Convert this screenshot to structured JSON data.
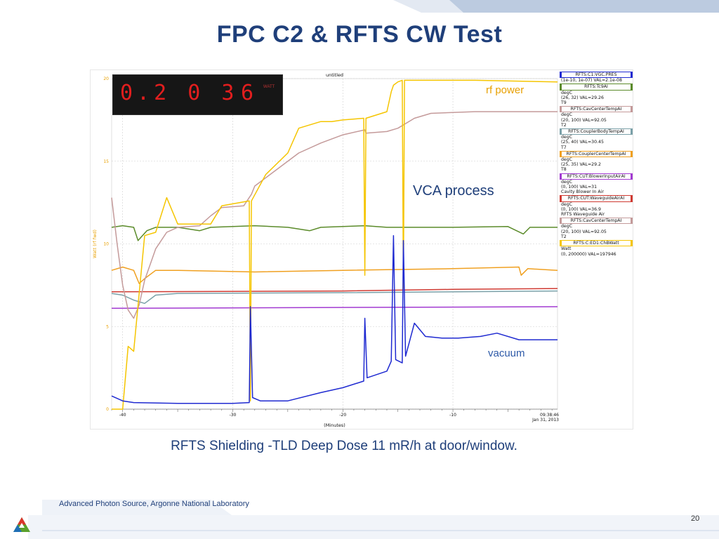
{
  "slide": {
    "title": "FPC C2 & RFTS CW Test",
    "caption": "RFTS Shielding -TLD Deep Dose 11 mR/h at door/window.",
    "footer": "Advanced Photon Source, Argonne National Laboratory",
    "page_number": "20",
    "colors": {
      "title": "#1f3f7a",
      "band": "#c9d4e6"
    }
  },
  "led_display": {
    "value": "0.2 0 3",
    "channel": "6",
    "unit": "WATT"
  },
  "chart_data": {
    "type": "line",
    "title": "untitled",
    "xlabel": "(Minutes)",
    "ylabel": "Watt (rf fwd)",
    "xlim": [
      -41,
      -0.5
    ],
    "ylim": [
      0,
      20
    ],
    "x_ticks": [
      "-40",
      "-30",
      "-20",
      "-10"
    ],
    "y_ticks": [
      "0",
      "5",
      "10",
      "15",
      "20"
    ],
    "timestamp": "09:38:46",
    "date": "Jan 31, 2013",
    "grid": true,
    "legend_position": "right",
    "annotations": {
      "rf_power": "rf power",
      "vca": "VCA process",
      "vacuum": "vacuum"
    },
    "series": [
      {
        "name": "RFTS:CUT:BlowerInputAirAI",
        "color": "#a23ad1",
        "points": [
          [
            -41,
            6.1
          ],
          [
            -0.5,
            6.2
          ]
        ]
      },
      {
        "name": "RFTS:CUT:WaveguideAirAI",
        "color": "#d03a32",
        "points": [
          [
            -41,
            7.1
          ],
          [
            -20,
            7.15
          ],
          [
            -10,
            7.25
          ],
          [
            -0.5,
            7.3
          ]
        ]
      },
      {
        "name": "RFTS:CouplerBodyTempAI",
        "color": "#7aa0a8",
        "points": [
          [
            -41,
            7.0
          ],
          [
            -40,
            6.9
          ],
          [
            -39,
            6.6
          ],
          [
            -38,
            6.4
          ],
          [
            -37,
            6.9
          ],
          [
            -35,
            7.0
          ],
          [
            -20,
            7.05
          ],
          [
            -0.5,
            7.15
          ]
        ]
      },
      {
        "name": "RFTS:CouplerCenterTempAI",
        "color": "#f0a020",
        "points": [
          [
            -41,
            8.4
          ],
          [
            -40,
            8.6
          ],
          [
            -39,
            8.4
          ],
          [
            -38.5,
            7.6
          ],
          [
            -38,
            7.9
          ],
          [
            -37,
            8.4
          ],
          [
            -35,
            8.4
          ],
          [
            -28,
            8.3
          ],
          [
            -20,
            8.4
          ],
          [
            -10,
            8.5
          ],
          [
            -4,
            8.6
          ],
          [
            -3.8,
            8.1
          ],
          [
            -3.2,
            8.5
          ],
          [
            -0.5,
            8.4
          ]
        ]
      },
      {
        "name": "RFTS:Tc9AI",
        "color": "#5b8b2a",
        "points": [
          [
            -41,
            11.0
          ],
          [
            -40,
            11.1
          ],
          [
            -39,
            11.0
          ],
          [
            -38.6,
            10.2
          ],
          [
            -37.8,
            10.8
          ],
          [
            -37,
            11.0
          ],
          [
            -35,
            11.0
          ],
          [
            -33,
            10.8
          ],
          [
            -32,
            11.0
          ],
          [
            -28,
            11.1
          ],
          [
            -25,
            11.0
          ],
          [
            -23,
            10.8
          ],
          [
            -22,
            11.0
          ],
          [
            -18,
            11.1
          ],
          [
            -16,
            11.0
          ],
          [
            -10,
            11.0
          ],
          [
            -5,
            11.05
          ],
          [
            -3.6,
            10.6
          ],
          [
            -3.0,
            11.0
          ],
          [
            -0.5,
            11.0
          ]
        ]
      },
      {
        "name": "RFTS:CavCenterTempAI",
        "color": "#c49a9a",
        "points": [
          [
            -41,
            12.8
          ],
          [
            -40.5,
            10.0
          ],
          [
            -40,
            7.5
          ],
          [
            -39.5,
            6.0
          ],
          [
            -39,
            5.5
          ],
          [
            -38.5,
            6.3
          ],
          [
            -38,
            7.8
          ],
          [
            -37,
            9.7
          ],
          [
            -36,
            10.7
          ],
          [
            -35,
            11.0
          ],
          [
            -33,
            11.1
          ],
          [
            -32,
            11.7
          ],
          [
            -31,
            12.2
          ],
          [
            -29,
            12.3
          ],
          [
            -28.3,
            13.0
          ],
          [
            -28,
            13.5
          ],
          [
            -26,
            14.5
          ],
          [
            -24,
            15.5
          ],
          [
            -22,
            16.1
          ],
          [
            -20,
            16.6
          ],
          [
            -18,
            16.9
          ],
          [
            -17.9,
            16.7
          ],
          [
            -16,
            16.8
          ],
          [
            -15,
            17.0
          ],
          [
            -13.5,
            17.6
          ],
          [
            -12,
            17.9
          ],
          [
            -8,
            18.0
          ],
          [
            -0.5,
            18.0
          ]
        ]
      },
      {
        "name": "RFTS:C:ED1:ChBWatt",
        "color": "#f5c500",
        "points": [
          [
            -41,
            0
          ],
          [
            -40,
            0
          ],
          [
            -39.5,
            3.8
          ],
          [
            -39,
            3.5
          ],
          [
            -38,
            10.5
          ],
          [
            -37,
            10.7
          ],
          [
            -36,
            12.8
          ],
          [
            -35,
            11.2
          ],
          [
            -32,
            11.2
          ],
          [
            -31,
            12.3
          ],
          [
            -28.5,
            12.6
          ],
          [
            -28.4,
            0.5
          ],
          [
            -28.3,
            12.6
          ],
          [
            -27,
            14.2
          ],
          [
            -25,
            15.5
          ],
          [
            -24,
            17.0
          ],
          [
            -22,
            17.4
          ],
          [
            -21,
            17.4
          ],
          [
            -20,
            17.5
          ],
          [
            -18.1,
            17.6
          ],
          [
            -18,
            8.1
          ],
          [
            -17.9,
            17.6
          ],
          [
            -16,
            18.0
          ],
          [
            -15.6,
            19.2
          ],
          [
            -15.4,
            19.6
          ],
          [
            -15,
            19.8
          ],
          [
            -14.6,
            19.9
          ],
          [
            -14.5,
            7.3
          ],
          [
            -14.4,
            19.9
          ],
          [
            -12,
            19.9
          ],
          [
            -8,
            19.9
          ],
          [
            -0.5,
            19.8
          ]
        ]
      },
      {
        "name": "RFTS:C1:VGC.PRES",
        "color": "#1f2ad1",
        "points": [
          [
            -41,
            0.8
          ],
          [
            -40,
            0.5
          ],
          [
            -39,
            0.4
          ],
          [
            -35,
            0.35
          ],
          [
            -30,
            0.35
          ],
          [
            -28.5,
            0.4
          ],
          [
            -28.4,
            6.2
          ],
          [
            -28.2,
            0.7
          ],
          [
            -27.5,
            0.5
          ],
          [
            -25,
            0.5
          ],
          [
            -22,
            1.0
          ],
          [
            -20,
            1.3
          ],
          [
            -18.1,
            1.7
          ],
          [
            -18.0,
            5.5
          ],
          [
            -17.8,
            1.9
          ],
          [
            -16,
            2.3
          ],
          [
            -15.6,
            2.9
          ],
          [
            -15.4,
            10.5
          ],
          [
            -15.2,
            3.0
          ],
          [
            -14.6,
            2.8
          ],
          [
            -14.5,
            10.2
          ],
          [
            -14.3,
            3.2
          ],
          [
            -13.5,
            5.2
          ],
          [
            -12.5,
            4.4
          ],
          [
            -11,
            4.3
          ],
          [
            -9.5,
            4.3
          ],
          [
            -7.5,
            4.4
          ],
          [
            -6,
            4.6
          ],
          [
            -4,
            4.2
          ],
          [
            -0.5,
            4.2
          ]
        ]
      }
    ]
  },
  "legend": [
    {
      "name": "RFTS:C1:VGC.PRES",
      "color": "#1f2ad1",
      "lines": [
        "(1e-10, 1e-07) VAL=2.1e-08"
      ]
    },
    {
      "name": "RFTS:Tc9AI",
      "color": "#5b8b2a",
      "lines": [
        "degC",
        "(26, 32) VAL=29.26",
        "T9"
      ]
    },
    {
      "name": "RFTS:CavCenterTempAI",
      "color": "#c49a9a",
      "lines": [
        "degC",
        "(20, 100) VAL=92.05",
        "T2"
      ]
    },
    {
      "name": "RFTS:CouplerBodyTempAI",
      "color": "#7aa0a8",
      "lines": [
        "degC",
        "(25, 40) VAL=30.45",
        "T7"
      ]
    },
    {
      "name": "RFTS:CouplerCenterTempAI",
      "color": "#f0a020",
      "lines": [
        "degC",
        "(25, 35) VAL=29.2",
        "T8"
      ]
    },
    {
      "name": "RFTS:CUT:BlowerInputAirAI",
      "color": "#a23ad1",
      "lines": [
        "degC",
        "(0, 100) VAL=31",
        "Cavity Blower In Air"
      ]
    },
    {
      "name": "RFTS:CUT:WaveguideAirAI",
      "color": "#d03a32",
      "lines": [
        "degC",
        "(0, 100) VAL=36.9",
        "RFTS Waveguide Air"
      ]
    },
    {
      "name": "RFTS:CavCenterTempAI",
      "color": "#c49a9a",
      "lines": [
        "degC",
        "(20, 100) VAL=92.05",
        "T2"
      ]
    },
    {
      "name": "RFTS:C:ED1:ChBWatt",
      "color": "#f5c500",
      "lines": [
        "Watt",
        "(0, 200000) VAL=197946"
      ]
    }
  ]
}
